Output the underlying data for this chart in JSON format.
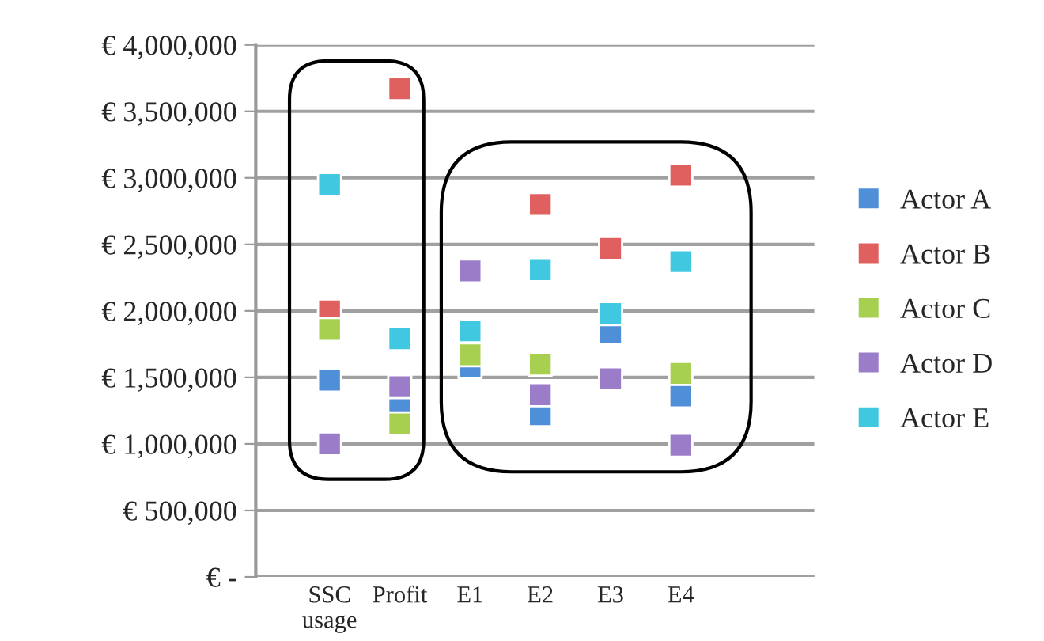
{
  "chart_data": {
    "type": "scatter",
    "categories": [
      "SSC\nusage",
      "Profit",
      "E1",
      "E2",
      "E3",
      "E4"
    ],
    "series": [
      {
        "name": "Actor A",
        "color": "#4f8fd8",
        "values": [
          1480000,
          1260000,
          1580000,
          1220000,
          1840000,
          1360000
        ]
      },
      {
        "name": "Actor B",
        "color": "#e06060",
        "values": [
          2000000,
          3670000,
          null,
          2800000,
          2470000,
          3020000
        ]
      },
      {
        "name": "Actor C",
        "color": "#a8d050",
        "values": [
          1860000,
          1150000,
          1670000,
          1600000,
          null,
          1530000
        ]
      },
      {
        "name": "Actor D",
        "color": "#9a7cc8",
        "values": [
          1000000,
          1430000,
          2300000,
          1370000,
          1490000,
          990000
        ]
      },
      {
        "name": "Actor E",
        "color": "#40c8e0",
        "values": [
          2950000,
          1790000,
          1850000,
          2310000,
          1980000,
          2370000
        ]
      }
    ],
    "ylim": [
      0,
      4000000
    ],
    "yticks": [
      {
        "value": 0,
        "label": "€ -"
      },
      {
        "value": 500000,
        "label": "€ 500,000"
      },
      {
        "value": 1000000,
        "label": "€ 1,000,000"
      },
      {
        "value": 1500000,
        "label": "€ 1,500,000"
      },
      {
        "value": 2000000,
        "label": "€ 2,000,000"
      },
      {
        "value": 2500000,
        "label": "€ 2,500,000"
      },
      {
        "value": 3000000,
        "label": "€ 3,000,000"
      },
      {
        "value": 3500000,
        "label": "€ 3,500,000"
      },
      {
        "value": 4000000,
        "label": "€ 4,000,000"
      }
    ],
    "grid": "y",
    "legend": "right",
    "marker": "square"
  }
}
